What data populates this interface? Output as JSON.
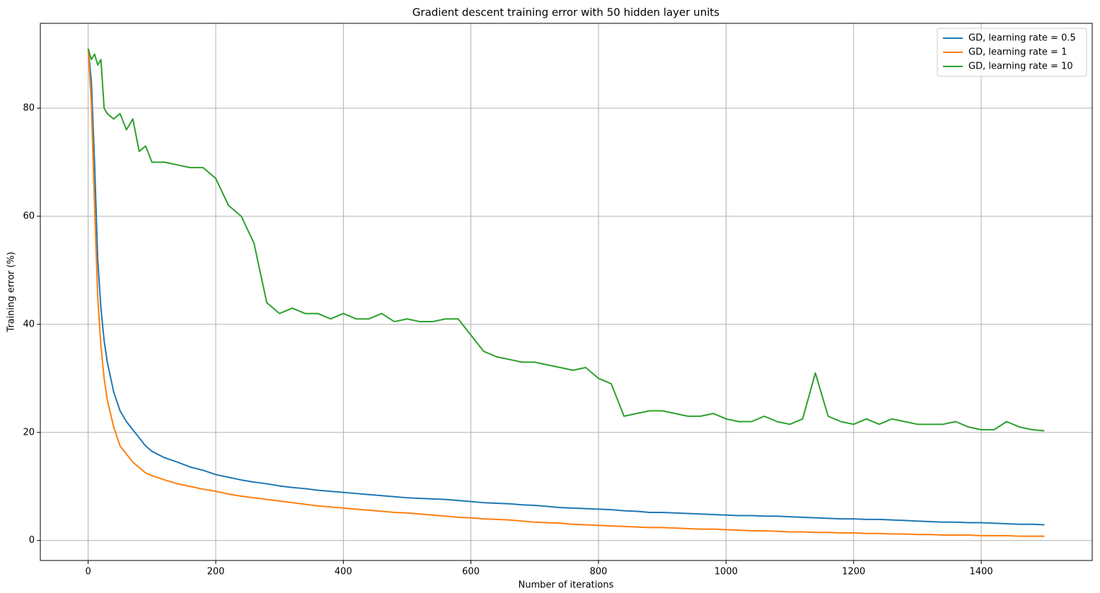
{
  "chart_data": {
    "type": "line",
    "title": "Gradient descent training error with 50 hidden layer units",
    "xlabel": "Number of iterations",
    "ylabel": "Training error (%)",
    "x": [
      0,
      5,
      10,
      15,
      20,
      25,
      30,
      40,
      50,
      60,
      70,
      80,
      90,
      100,
      120,
      140,
      160,
      180,
      200,
      220,
      240,
      260,
      280,
      300,
      320,
      340,
      360,
      380,
      400,
      420,
      440,
      460,
      480,
      500,
      520,
      540,
      560,
      580,
      600,
      620,
      640,
      660,
      680,
      700,
      720,
      740,
      760,
      780,
      800,
      820,
      840,
      860,
      880,
      900,
      920,
      940,
      960,
      980,
      1000,
      1020,
      1040,
      1060,
      1080,
      1100,
      1120,
      1140,
      1160,
      1180,
      1200,
      1220,
      1240,
      1260,
      1280,
      1300,
      1320,
      1340,
      1360,
      1380,
      1400,
      1420,
      1440,
      1460,
      1480,
      1499
    ],
    "series": [
      {
        "name": "GD, learning rate = 0.5",
        "color": "#1f77b4",
        "values": [
          91,
          85,
          70,
          52,
          43,
          37,
          33,
          27.5,
          24,
          22,
          20.5,
          19,
          17.5,
          16.5,
          15.3,
          14.5,
          13.6,
          13,
          12.2,
          11.7,
          11.2,
          10.8,
          10.5,
          10.1,
          9.8,
          9.6,
          9.3,
          9.1,
          8.9,
          8.7,
          8.5,
          8.3,
          8.1,
          7.9,
          7.8,
          7.7,
          7.6,
          7.4,
          7.2,
          7.0,
          6.9,
          6.8,
          6.6,
          6.5,
          6.3,
          6.1,
          6.0,
          5.9,
          5.8,
          5.7,
          5.5,
          5.4,
          5.2,
          5.2,
          5.1,
          5.0,
          4.9,
          4.8,
          4.7,
          4.6,
          4.6,
          4.5,
          4.5,
          4.4,
          4.3,
          4.2,
          4.1,
          4.0,
          4.0,
          3.9,
          3.9,
          3.8,
          3.7,
          3.6,
          3.5,
          3.4,
          3.4,
          3.3,
          3.3,
          3.2,
          3.1,
          3.0,
          3.0,
          2.9
        ]
      },
      {
        "name": "GD, learning rate = 1",
        "color": "#ff7f0e",
        "values": [
          91,
          81,
          62,
          45,
          36,
          30,
          26,
          21,
          17.5,
          16,
          14.5,
          13.5,
          12.5,
          12,
          11.2,
          10.5,
          10,
          9.5,
          9.1,
          8.6,
          8.2,
          7.9,
          7.6,
          7.3,
          7.0,
          6.7,
          6.4,
          6.2,
          6.0,
          5.8,
          5.6,
          5.4,
          5.2,
          5.1,
          4.9,
          4.7,
          4.5,
          4.3,
          4.2,
          4.0,
          3.9,
          3.8,
          3.6,
          3.4,
          3.3,
          3.2,
          3.0,
          2.9,
          2.8,
          2.7,
          2.6,
          2.5,
          2.4,
          2.4,
          2.3,
          2.2,
          2.1,
          2.1,
          2.0,
          1.9,
          1.8,
          1.8,
          1.7,
          1.6,
          1.6,
          1.5,
          1.5,
          1.4,
          1.4,
          1.3,
          1.3,
          1.2,
          1.2,
          1.1,
          1.1,
          1.0,
          1.0,
          1.0,
          0.9,
          0.9,
          0.9,
          0.8,
          0.8,
          0.8
        ]
      },
      {
        "name": "GD, learning rate = 10",
        "color": "#2ca02c",
        "values": [
          91,
          89,
          90,
          88,
          89,
          80,
          79,
          78,
          79,
          76,
          78,
          72,
          73,
          70,
          70,
          69.5,
          69,
          69,
          67,
          62,
          60,
          55,
          44,
          42,
          43,
          42,
          42,
          41,
          42,
          41,
          41,
          42,
          40.5,
          41,
          40.5,
          40.5,
          41,
          41,
          38,
          35,
          34,
          33.5,
          33,
          33,
          32.5,
          32,
          31.5,
          32,
          30,
          29,
          23,
          23.5,
          24,
          24,
          23.5,
          23,
          23,
          23.5,
          22.5,
          22,
          22,
          23,
          22,
          21.5,
          22.5,
          31,
          23,
          22,
          21.5,
          22.5,
          21.5,
          22.5,
          22,
          21.5,
          21.5,
          21.5,
          22,
          21,
          20.5,
          20.5,
          22,
          21,
          20.5,
          20.3
        ]
      }
    ],
    "xlim": [
      -75,
      1574
    ],
    "ylim": [
      -3.7,
      95.7
    ],
    "xticks": [
      0,
      200,
      400,
      600,
      800,
      1000,
      1200,
      1400
    ],
    "yticks": [
      0,
      20,
      40,
      60,
      80
    ],
    "grid": true,
    "legend": "upper right"
  }
}
